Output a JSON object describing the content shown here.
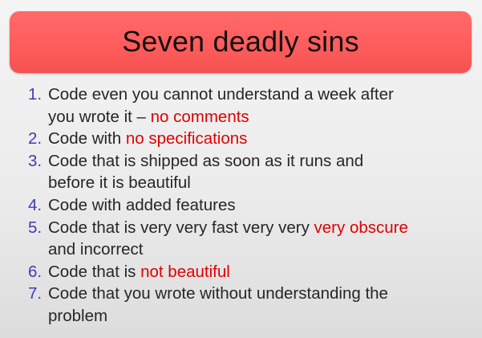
{
  "title": "Seven deadly sins",
  "colors": {
    "title_bar": "#ff5b5b",
    "number": "#3d3db8",
    "highlight": "#e00000",
    "text": "#262626"
  },
  "sins": [
    {
      "number": "1.",
      "line1": "Code even you cannot understand a week after",
      "line2_pre": "you wrote it – ",
      "highlight": "no comments"
    },
    {
      "number": "2.",
      "pre": "Code with ",
      "highlight": "no specifications"
    },
    {
      "number": "3.",
      "line1": "Code that is shipped as soon as it runs and",
      "line2": "before it is beautiful"
    },
    {
      "number": "4.",
      "text": "Code with added features"
    },
    {
      "number": "5.",
      "pre": "Code that is very very fast very very ",
      "highlight": "very obscure",
      "line2": "and incorrect"
    },
    {
      "number": "6.",
      "pre": "Code that is ",
      "highlight": "not beautiful"
    },
    {
      "number": "7.",
      "line1": "Code that you wrote without understanding the",
      "line2": "problem"
    }
  ]
}
